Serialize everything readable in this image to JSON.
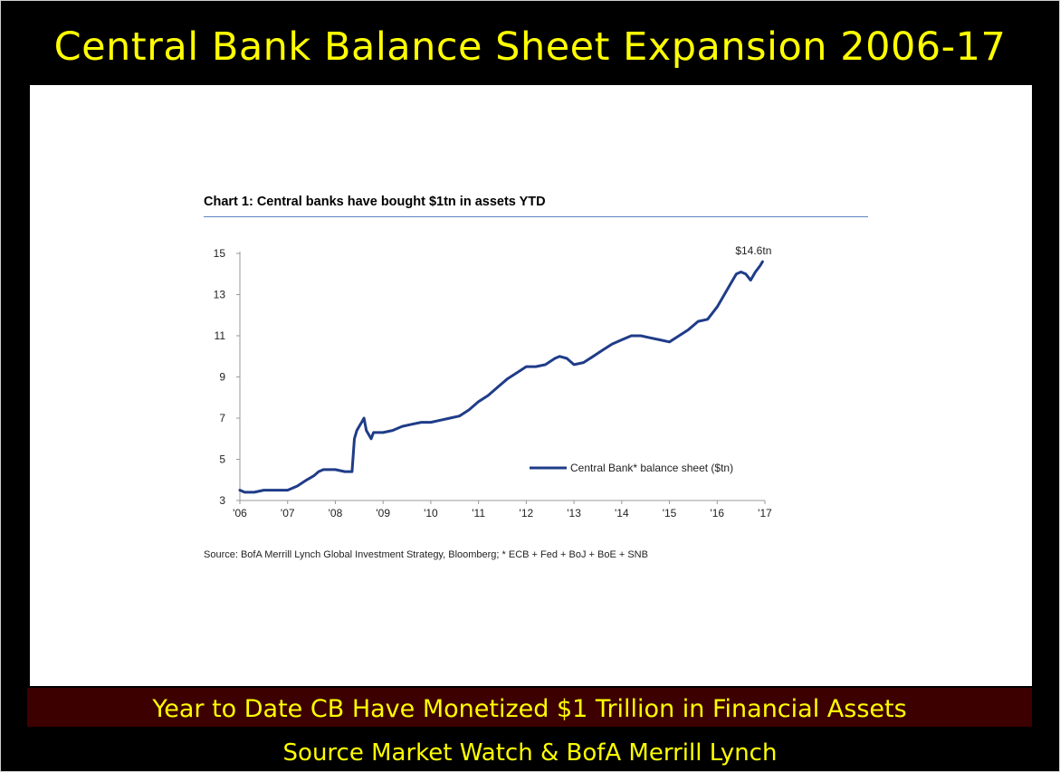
{
  "slide": {
    "title": "Central Bank Balance Sheet Expansion 2006-17",
    "banner": "Year to Date CB Have Monetized $1 Trillion in Financial Assets",
    "footer": "Source Market Watch & BofA Merrill Lynch"
  },
  "chart_data": {
    "type": "line",
    "title": "Chart 1: Central banks have bought $1tn in assets YTD",
    "source_note": "Source: BofA Merrill Lynch Global Investment Strategy, Bloomberg; * ECB + Fed + BoJ + BoE + SNB",
    "xlabel": "",
    "ylabel": "",
    "x_ticks": [
      "'06",
      "'07",
      "'08",
      "'09",
      "'10",
      "'11",
      "'12",
      "'13",
      "'14",
      "'15",
      "'16",
      "'17"
    ],
    "y_ticks": [
      3,
      5,
      7,
      9,
      11,
      13,
      15
    ],
    "xlim": [
      2006.0,
      2017.0
    ],
    "ylim": [
      3,
      15
    ],
    "grid": false,
    "legend_position": "bottom-right",
    "line_color": "#1f3c88",
    "annotation": "$14.6tn",
    "series": [
      {
        "name": "Central Bank* balance sheet ($tn)",
        "x": [
          2006.0,
          2006.1,
          2006.3,
          2006.5,
          2006.7,
          2006.9,
          2007.0,
          2007.2,
          2007.4,
          2007.55,
          2007.65,
          2007.75,
          2007.9,
          2008.0,
          2008.2,
          2008.35,
          2008.4,
          2008.45,
          2008.5,
          2008.55,
          2008.6,
          2008.65,
          2008.7,
          2008.75,
          2008.8,
          2008.9,
          2009.0,
          2009.2,
          2009.4,
          2009.6,
          2009.8,
          2010.0,
          2010.2,
          2010.4,
          2010.6,
          2010.8,
          2011.0,
          2011.2,
          2011.4,
          2011.6,
          2011.8,
          2012.0,
          2012.2,
          2012.4,
          2012.6,
          2012.7,
          2012.85,
          2013.0,
          2013.2,
          2013.4,
          2013.6,
          2013.8,
          2014.0,
          2014.2,
          2014.4,
          2014.6,
          2014.8,
          2015.0,
          2015.2,
          2015.4,
          2015.6,
          2015.8,
          2016.0,
          2016.2,
          2016.3,
          2016.4,
          2016.5,
          2016.6,
          2016.7,
          2016.8,
          2016.9,
          2016.95
        ],
        "values": [
          3.5,
          3.4,
          3.4,
          3.5,
          3.5,
          3.5,
          3.5,
          3.7,
          4.0,
          4.2,
          4.4,
          4.5,
          4.5,
          4.5,
          4.4,
          4.4,
          6.0,
          6.4,
          6.6,
          6.8,
          7.0,
          6.4,
          6.2,
          6.0,
          6.3,
          6.3,
          6.3,
          6.4,
          6.6,
          6.7,
          6.8,
          6.8,
          6.9,
          7.0,
          7.1,
          7.4,
          7.8,
          8.1,
          8.5,
          8.9,
          9.2,
          9.5,
          9.5,
          9.6,
          9.9,
          10.0,
          9.9,
          9.6,
          9.7,
          10.0,
          10.3,
          10.6,
          10.8,
          11.0,
          11.0,
          10.9,
          10.8,
          10.7,
          11.0,
          11.3,
          11.7,
          11.8,
          12.4,
          13.2,
          13.6,
          14.0,
          14.1,
          14.0,
          13.7,
          14.1,
          14.4,
          14.6
        ]
      }
    ]
  }
}
